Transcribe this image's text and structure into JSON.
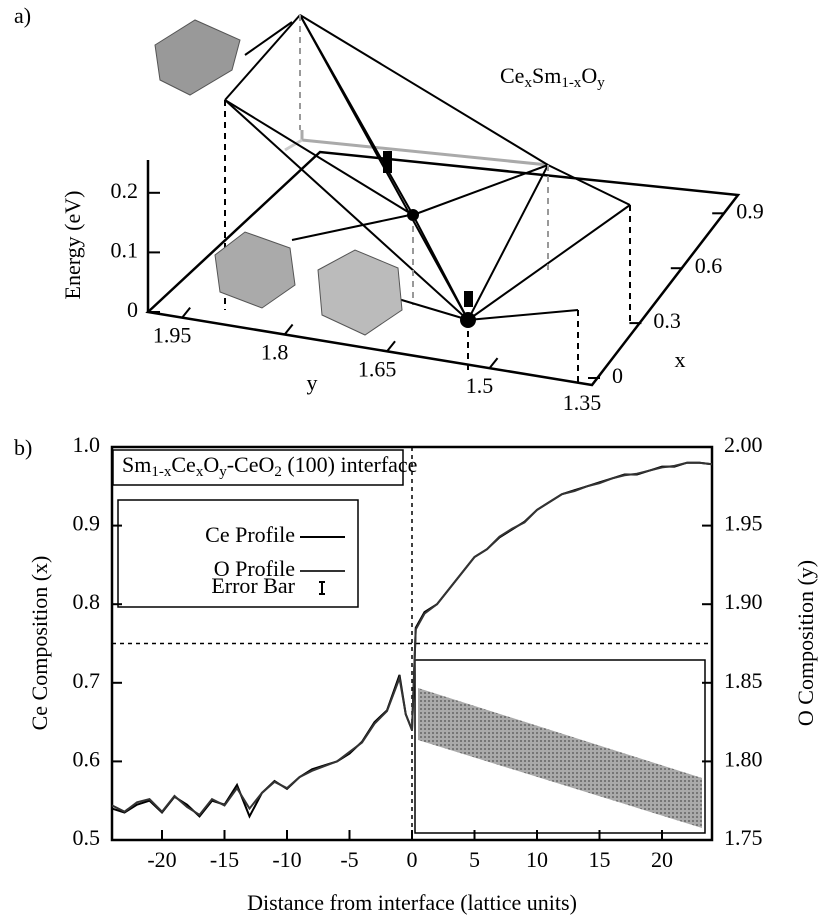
{
  "chart_data": [
    {
      "type": "surface3d",
      "panel_label": "a)",
      "label_parts": [
        "Ce",
        "x",
        "Sm",
        "1-x",
        "O",
        "y"
      ],
      "zlabel": "Energy (eV)",
      "ylabel": "y",
      "xlabel": "x",
      "zlim": [
        0,
        0.25
      ],
      "zticks": [
        0,
        0.1,
        0.2
      ],
      "ylim": [
        2.0,
        1.35
      ],
      "yticks": [
        1.95,
        1.8,
        1.65,
        1.5,
        1.35
      ],
      "xlim": [
        0,
        1.0
      ],
      "xticks": [
        0,
        0.3,
        0.6,
        0.9
      ]
    },
    {
      "type": "line",
      "panel_label": "b)",
      "title_parts": [
        "Sm",
        "1-x",
        "Ce",
        "x",
        "O",
        "y",
        "-CeO",
        "2",
        " (100) interface"
      ],
      "xlabel": "Distance from interface (lattice units)",
      "ylabel": "Ce Composition (x)",
      "y2label": "O Composition (y)",
      "x": [
        -24,
        -23,
        -22,
        -21,
        -20,
        -19,
        -18,
        -17,
        -16,
        -15,
        -14,
        -13,
        -12,
        -11,
        -10,
        -9,
        -8,
        -7,
        -6,
        -5,
        -4,
        -3,
        -2,
        -1,
        -0.5,
        0,
        0.3,
        1,
        2,
        3,
        4,
        5,
        6,
        7,
        8,
        9,
        10,
        11,
        12,
        13,
        14,
        15,
        16,
        17,
        18,
        19,
        20,
        21,
        22,
        23,
        24
      ],
      "series": [
        {
          "name": "Ce Profile",
          "color": "#000",
          "values": [
            0.54,
            0.535,
            0.545,
            0.55,
            0.535,
            0.555,
            0.545,
            0.53,
            0.55,
            0.545,
            0.57,
            0.53,
            0.56,
            0.575,
            0.565,
            0.58,
            0.59,
            0.595,
            0.6,
            0.61,
            0.625,
            0.65,
            0.665,
            0.71,
            0.66,
            0.64,
            0.77,
            0.79,
            0.8,
            0.82,
            0.84,
            0.86,
            0.87,
            0.885,
            0.895,
            0.905,
            0.92,
            0.93,
            0.94,
            0.945,
            0.95,
            0.955,
            0.96,
            0.965,
            0.965,
            0.97,
            0.975,
            0.975,
            0.98,
            0.98,
            0.978
          ]
        },
        {
          "name": "O Profile",
          "color": "#333",
          "axis": "y2",
          "values": [
            1.772,
            1.768,
            1.774,
            1.776,
            1.768,
            1.778,
            1.771,
            1.766,
            1.776,
            1.772,
            1.783,
            1.77,
            1.78,
            1.787,
            1.783,
            1.79,
            1.794,
            1.797,
            1.8,
            1.806,
            1.812,
            1.824,
            1.832,
            1.853,
            1.83,
            1.82,
            1.884,
            1.894,
            1.9,
            1.91,
            1.92,
            1.93,
            1.935,
            1.943,
            1.948,
            1.952,
            1.96,
            1.965,
            1.97,
            1.972,
            1.975,
            1.977,
            1.98,
            1.982,
            1.983,
            1.985,
            1.987,
            1.988,
            1.99,
            1.99,
            1.989
          ]
        }
      ],
      "legend_extra": "Error Bar",
      "hlines": [
        0.75
      ],
      "vlines": [
        0
      ],
      "xlim": [
        -24,
        24
      ],
      "xticks": [
        -20,
        -15,
        -10,
        -5,
        0,
        5,
        10,
        15,
        20
      ],
      "ylim": [
        0.5,
        1.0
      ],
      "yticks": [
        0.5,
        0.6,
        0.7,
        0.8,
        0.9,
        {
          "value": 1.0,
          "label": "1.0"
        }
      ],
      "y2lim": [
        1.75,
        2.0
      ],
      "y2ticks": [
        1.75,
        {
          "value": 1.8,
          "label": "1.80"
        },
        1.85,
        {
          "value": 1.9,
          "label": "1.90"
        },
        1.95,
        {
          "value": 2.0,
          "label": "2.00"
        }
      ]
    }
  ]
}
